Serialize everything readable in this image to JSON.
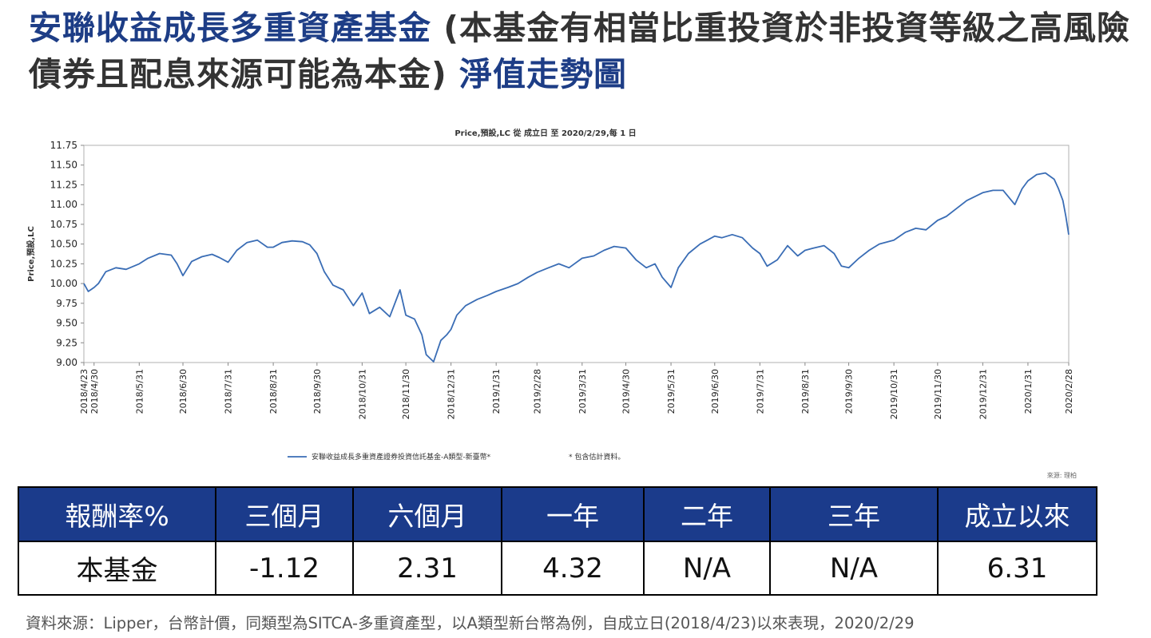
{
  "page": {
    "title_part1": "安聯收益成長多重資產基金",
    "title_part2": " (本基金有相當比重投資於非投資等級之高風險債券且配息來源可能為本金) ",
    "title_part3": "淨值走勢圖"
  },
  "chart_data": {
    "type": "line",
    "title": "Price,預設,LC 從 成立日 至 2020/2/29,每 1 日",
    "ylabel": "Price,預設,LC",
    "xlabel": "",
    "ylim": [
      9.0,
      11.75
    ],
    "yticks": [
      "11.75",
      "11.50",
      "11.25",
      "11.00",
      "10.75",
      "10.50",
      "10.25",
      "10.00",
      "9.75",
      "9.50",
      "9.25",
      "9.00"
    ],
    "xticks": [
      "2018/4/23",
      "2018/4/30",
      "2018/5/31",
      "2018/6/30",
      "2018/7/31",
      "2018/8/31",
      "2018/9/30",
      "2018/10/31",
      "2018/11/30",
      "2018/12/31",
      "2019/1/31",
      "2019/2/28",
      "2019/3/31",
      "2019/4/30",
      "2019/5/31",
      "2019/6/30",
      "2019/7/31",
      "2019/8/31",
      "2019/9/30",
      "2019/10/31",
      "2019/11/30",
      "2019/12/31",
      "2020/1/31",
      "2020/2/28"
    ],
    "grid": false,
    "legend_position": "bottom",
    "source_note": "來源: 理柏",
    "color": "#3a6db5",
    "series": [
      {
        "name": "安聯收益成長多重資產證券投資信託基金-A類型-新臺幣*",
        "x": [
          "2018/4/23",
          "2018/4/26",
          "2018/4/30",
          "2018/5/3",
          "2018/5/8",
          "2018/5/15",
          "2018/5/22",
          "2018/5/31",
          "2018/6/6",
          "2018/6/14",
          "2018/6/22",
          "2018/6/26",
          "2018/6/30",
          "2018/7/6",
          "2018/7/13",
          "2018/7/20",
          "2018/7/25",
          "2018/7/31",
          "2018/8/6",
          "2018/8/13",
          "2018/8/20",
          "2018/8/27",
          "2018/8/31",
          "2018/9/6",
          "2018/9/13",
          "2018/9/20",
          "2018/9/25",
          "2018/9/30",
          "2018/10/5",
          "2018/10/11",
          "2018/10/18",
          "2018/10/25",
          "2018/10/31",
          "2018/11/5",
          "2018/11/12",
          "2018/11/19",
          "2018/11/26",
          "2018/11/30",
          "2018/12/6",
          "2018/12/11",
          "2018/12/14",
          "2018/12/19",
          "2018/12/24",
          "2018/12/28",
          "2018/12/31",
          "2019/1/4",
          "2019/1/10",
          "2019/1/18",
          "2019/1/25",
          "2019/1/31",
          "2019/2/8",
          "2019/2/15",
          "2019/2/22",
          "2019/2/28",
          "2019/3/8",
          "2019/3/15",
          "2019/3/22",
          "2019/3/31",
          "2019/4/8",
          "2019/4/15",
          "2019/4/22",
          "2019/4/30",
          "2019/5/7",
          "2019/5/14",
          "2019/5/20",
          "2019/5/25",
          "2019/5/31",
          "2019/6/5",
          "2019/6/12",
          "2019/6/20",
          "2019/6/25",
          "2019/6/30",
          "2019/7/5",
          "2019/7/12",
          "2019/7/19",
          "2019/7/26",
          "2019/7/31",
          "2019/8/5",
          "2019/8/12",
          "2019/8/19",
          "2019/8/26",
          "2019/8/31",
          "2019/9/6",
          "2019/9/13",
          "2019/9/20",
          "2019/9/25",
          "2019/9/30",
          "2019/10/7",
          "2019/10/14",
          "2019/10/21",
          "2019/10/31",
          "2019/11/8",
          "2019/11/15",
          "2019/11/22",
          "2019/11/30",
          "2019/12/6",
          "2019/12/13",
          "2019/12/20",
          "2019/12/31",
          "2020/1/7",
          "2020/1/14",
          "2020/1/22",
          "2020/1/27",
          "2020/1/31",
          "2020/2/6",
          "2020/2/12",
          "2020/2/18",
          "2020/2/21",
          "2020/2/24",
          "2020/2/26",
          "2020/2/28"
        ],
        "values": [
          10.0,
          9.9,
          9.95,
          10.0,
          10.15,
          10.2,
          10.18,
          10.25,
          10.32,
          10.38,
          10.36,
          10.25,
          10.1,
          10.28,
          10.34,
          10.37,
          10.33,
          10.27,
          10.42,
          10.52,
          10.55,
          10.46,
          10.46,
          10.52,
          10.54,
          10.53,
          10.49,
          10.38,
          10.15,
          9.98,
          9.92,
          9.72,
          9.88,
          9.62,
          9.7,
          9.58,
          9.92,
          9.6,
          9.55,
          9.35,
          9.1,
          9.01,
          9.28,
          9.35,
          9.42,
          9.6,
          9.72,
          9.8,
          9.85,
          9.9,
          9.95,
          10.0,
          10.08,
          10.14,
          10.2,
          10.25,
          10.2,
          10.32,
          10.35,
          10.42,
          10.47,
          10.45,
          10.3,
          10.2,
          10.25,
          10.08,
          9.95,
          10.2,
          10.38,
          10.5,
          10.55,
          10.6,
          10.58,
          10.62,
          10.58,
          10.45,
          10.38,
          10.22,
          10.3,
          10.48,
          10.35,
          10.42,
          10.45,
          10.48,
          10.38,
          10.22,
          10.2,
          10.32,
          10.42,
          10.5,
          10.55,
          10.65,
          10.7,
          10.68,
          10.8,
          10.85,
          10.95,
          11.05,
          11.15,
          11.18,
          11.18,
          11.0,
          11.2,
          11.3,
          11.38,
          11.4,
          11.32,
          11.2,
          11.05,
          10.85,
          10.62
        ]
      }
    ],
    "legend_extra": "* 包含估計資料。"
  },
  "table": {
    "headers": [
      "報酬率%",
      "三個月",
      "六個月",
      "一年",
      "二年",
      "三年",
      "成立以來"
    ],
    "row": [
      "本基金",
      "-1.12",
      "2.31",
      "4.32",
      "N/A",
      "N/A",
      "6.31"
    ]
  },
  "footnote": "資料來源：Lipper，台幣計價，同類型為SITCA-多重資產型，以A類型新台幣為例，自成立日(2018/4/23)以來表現，2020/2/29"
}
